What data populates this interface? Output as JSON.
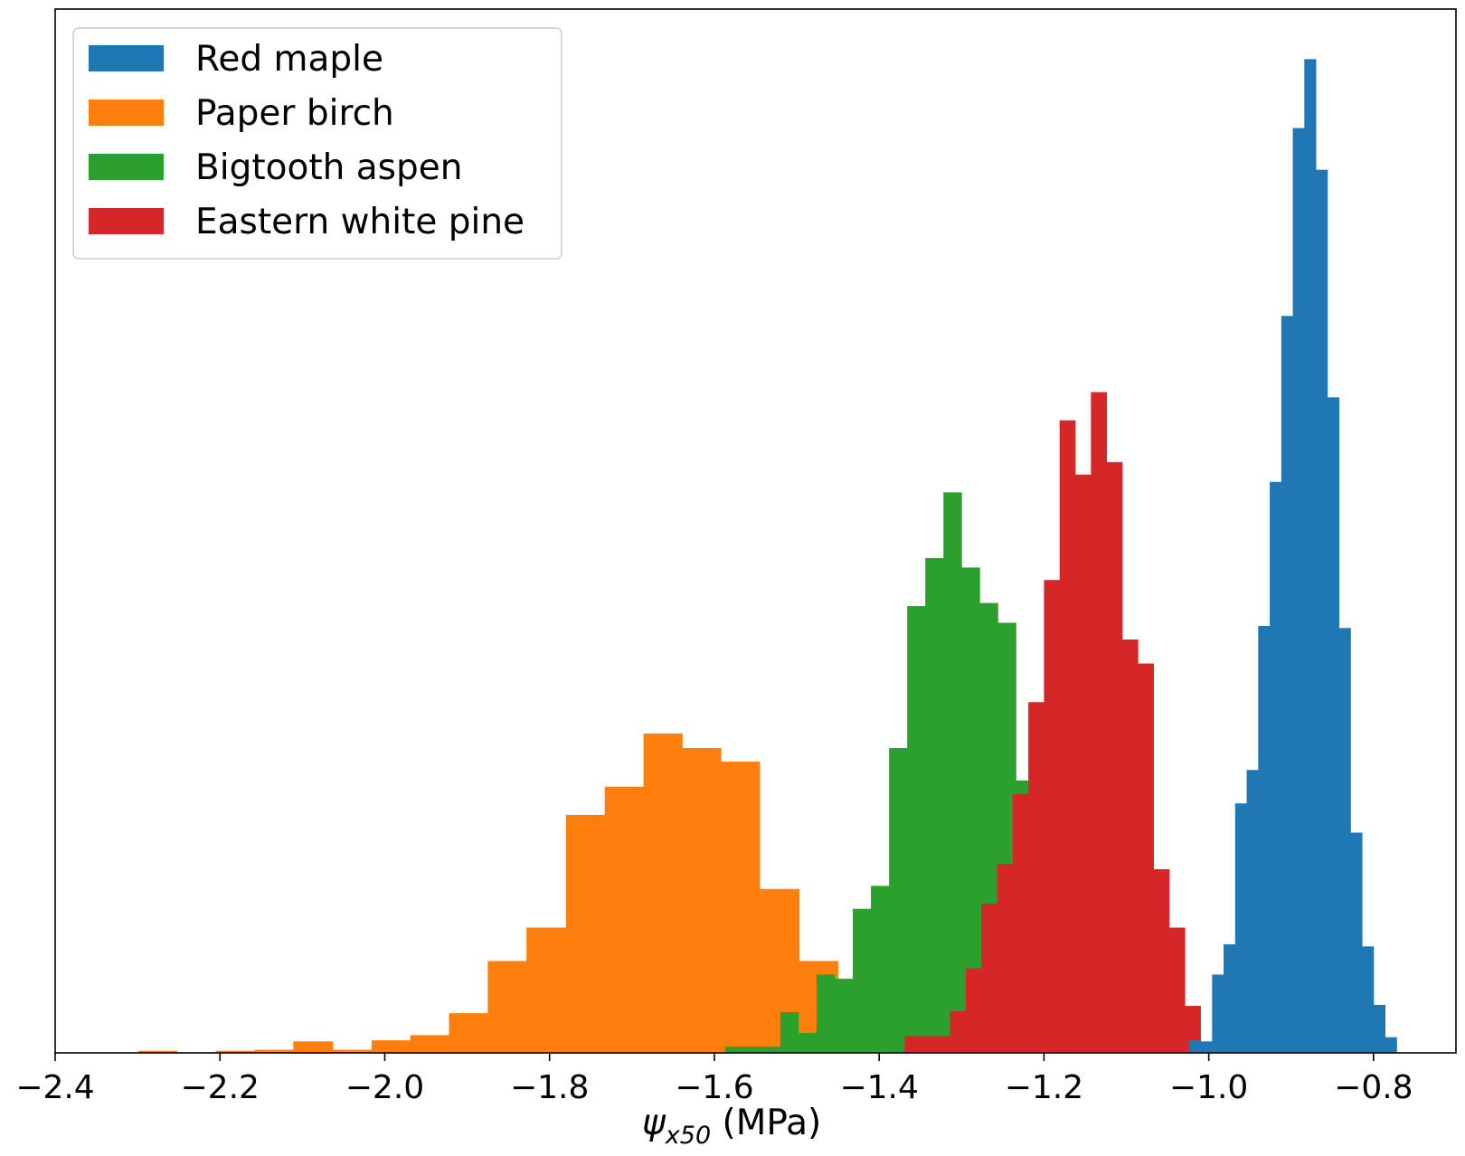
{
  "chart_data": {
    "type": "histogram",
    "title": "",
    "xlabel": "ψx50 (MPa)",
    "xlabel_parts": {
      "symbol": "ψ",
      "subscript": "x50",
      "unit": " (MPa)"
    },
    "ylabel": "",
    "xlim": [
      -2.4,
      -0.7
    ],
    "ylim": [
      0,
      1.0
    ],
    "x_ticks": [
      -2.4,
      -2.2,
      -2.0,
      -1.8,
      -1.6,
      -1.4,
      -1.2,
      -1.0,
      -0.8
    ],
    "x_tick_labels": [
      "−2.4",
      "−2.2",
      "−2.0",
      "−1.8",
      "−1.6",
      "−1.4",
      "−1.2",
      "−1.0",
      "−0.8"
    ],
    "y_ticks_shown": false,
    "grid": false,
    "legend_position": "upper-left",
    "series": [
      {
        "name": "Paper birch",
        "color": "#ff7f0e",
        "bins": [
          {
            "x0": -2.299,
            "x1": -2.252,
            "y": 0.002
          },
          {
            "x0": -2.205,
            "x1": -2.158,
            "y": 0.002
          },
          {
            "x0": -2.158,
            "x1": -2.111,
            "y": 0.003
          },
          {
            "x0": -2.111,
            "x1": -2.063,
            "y": 0.011
          },
          {
            "x0": -2.063,
            "x1": -2.016,
            "y": 0.003
          },
          {
            "x0": -2.016,
            "x1": -1.969,
            "y": 0.012
          },
          {
            "x0": -1.969,
            "x1": -1.922,
            "y": 0.017
          },
          {
            "x0": -1.922,
            "x1": -1.875,
            "y": 0.038
          },
          {
            "x0": -1.875,
            "x1": -1.828,
            "y": 0.088
          },
          {
            "x0": -1.828,
            "x1": -1.78,
            "y": 0.12
          },
          {
            "x0": -1.78,
            "x1": -1.733,
            "y": 0.228
          },
          {
            "x0": -1.733,
            "x1": -1.686,
            "y": 0.255
          },
          {
            "x0": -1.686,
            "x1": -1.639,
            "y": 0.306
          },
          {
            "x0": -1.639,
            "x1": -1.592,
            "y": 0.292
          },
          {
            "x0": -1.592,
            "x1": -1.545,
            "y": 0.279
          },
          {
            "x0": -1.545,
            "x1": -1.497,
            "y": 0.157
          },
          {
            "x0": -1.497,
            "x1": -1.45,
            "y": 0.088
          }
        ]
      },
      {
        "name": "Bigtooth aspen",
        "color": "#2ca02c",
        "bins": [
          {
            "x0": -1.587,
            "x1": -1.52,
            "y": 0.006
          },
          {
            "x0": -1.52,
            "x1": -1.498,
            "y": 0.039
          },
          {
            "x0": -1.498,
            "x1": -1.476,
            "y": 0.019
          },
          {
            "x0": -1.476,
            "x1": -1.454,
            "y": 0.075
          },
          {
            "x0": -1.454,
            "x1": -1.432,
            "y": 0.071
          },
          {
            "x0": -1.432,
            "x1": -1.41,
            "y": 0.138
          },
          {
            "x0": -1.41,
            "x1": -1.388,
            "y": 0.16
          },
          {
            "x0": -1.388,
            "x1": -1.366,
            "y": 0.292
          },
          {
            "x0": -1.366,
            "x1": -1.344,
            "y": 0.428
          },
          {
            "x0": -1.344,
            "x1": -1.322,
            "y": 0.474
          },
          {
            "x0": -1.322,
            "x1": -1.3,
            "y": 0.537
          },
          {
            "x0": -1.3,
            "x1": -1.278,
            "y": 0.465
          },
          {
            "x0": -1.278,
            "x1": -1.256,
            "y": 0.431
          },
          {
            "x0": -1.256,
            "x1": -1.234,
            "y": 0.412
          },
          {
            "x0": -1.234,
            "x1": -1.212,
            "y": 0.261
          }
        ]
      },
      {
        "name": "Eastern white pine",
        "color": "#d62728",
        "bins": [
          {
            "x0": -1.369,
            "x1": -1.314,
            "y": 0.016
          },
          {
            "x0": -1.314,
            "x1": -1.295,
            "y": 0.04
          },
          {
            "x0": -1.295,
            "x1": -1.276,
            "y": 0.081
          },
          {
            "x0": -1.276,
            "x1": -1.257,
            "y": 0.143
          },
          {
            "x0": -1.257,
            "x1": -1.238,
            "y": 0.181
          },
          {
            "x0": -1.238,
            "x1": -1.219,
            "y": 0.248
          },
          {
            "x0": -1.219,
            "x1": -1.2,
            "y": 0.336
          },
          {
            "x0": -1.2,
            "x1": -1.181,
            "y": 0.453
          },
          {
            "x0": -1.181,
            "x1": -1.162,
            "y": 0.606
          },
          {
            "x0": -1.162,
            "x1": -1.143,
            "y": 0.554
          },
          {
            "x0": -1.143,
            "x1": -1.124,
            "y": 0.633
          },
          {
            "x0": -1.124,
            "x1": -1.105,
            "y": 0.566
          },
          {
            "x0": -1.105,
            "x1": -1.086,
            "y": 0.396
          },
          {
            "x0": -1.086,
            "x1": -1.067,
            "y": 0.373
          },
          {
            "x0": -1.067,
            "x1": -1.048,
            "y": 0.176
          },
          {
            "x0": -1.048,
            "x1": -1.029,
            "y": 0.12
          },
          {
            "x0": -1.029,
            "x1": -1.01,
            "y": 0.045
          }
        ]
      },
      {
        "name": "Red maple",
        "color": "#1f77b4",
        "bins": [
          {
            "x0": -1.024,
            "x1": -1.01,
            "y": 0.012
          },
          {
            "x0": -1.01,
            "x1": -0.996,
            "y": 0.011
          },
          {
            "x0": -0.996,
            "x1": -0.982,
            "y": 0.075
          },
          {
            "x0": -0.982,
            "x1": -0.968,
            "y": 0.104
          },
          {
            "x0": -0.968,
            "x1": -0.954,
            "y": 0.239
          },
          {
            "x0": -0.954,
            "x1": -0.94,
            "y": 0.271
          },
          {
            "x0": -0.94,
            "x1": -0.926,
            "y": 0.409
          },
          {
            "x0": -0.926,
            "x1": -0.912,
            "y": 0.547
          },
          {
            "x0": -0.912,
            "x1": -0.898,
            "y": 0.706
          },
          {
            "x0": -0.898,
            "x1": -0.884,
            "y": 0.886
          },
          {
            "x0": -0.884,
            "x1": -0.87,
            "y": 0.952
          },
          {
            "x0": -0.87,
            "x1": -0.856,
            "y": 0.846
          },
          {
            "x0": -0.856,
            "x1": -0.842,
            "y": 0.628
          },
          {
            "x0": -0.842,
            "x1": -0.828,
            "y": 0.407
          },
          {
            "x0": -0.828,
            "x1": -0.814,
            "y": 0.211
          },
          {
            "x0": -0.814,
            "x1": -0.8,
            "y": 0.102
          },
          {
            "x0": -0.8,
            "x1": -0.786,
            "y": 0.046
          },
          {
            "x0": -0.786,
            "x1": -0.772,
            "y": 0.015
          }
        ]
      }
    ],
    "legend": [
      {
        "label": "Red maple",
        "color": "#1f77b4"
      },
      {
        "label": "Paper birch",
        "color": "#ff7f0e"
      },
      {
        "label": "Bigtooth aspen",
        "color": "#2ca02c"
      },
      {
        "label": "Eastern white pine",
        "color": "#d62728"
      }
    ]
  }
}
